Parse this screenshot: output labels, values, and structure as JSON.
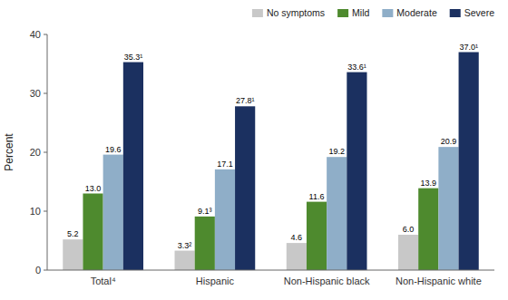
{
  "chart_data": {
    "type": "bar",
    "y_label": "Percent",
    "categories": [
      "Total⁴",
      "Hispanic",
      "Non-Hispanic black",
      "Non-Hispanic white"
    ],
    "series": [
      {
        "name": "No symptoms",
        "color": "#c8c8c8",
        "values": [
          5.2,
          3.3,
          4.6,
          6.0
        ],
        "value_labels": [
          "5.2",
          "3.3²",
          "4.6",
          "6.0"
        ]
      },
      {
        "name": "Mild",
        "color": "#4e8a2e",
        "values": [
          13.0,
          9.1,
          11.6,
          13.9
        ],
        "value_labels": [
          "13.0",
          "9.1³",
          "11.6",
          "13.9"
        ]
      },
      {
        "name": "Moderate",
        "color": "#8faec8",
        "values": [
          19.6,
          17.1,
          19.2,
          20.9
        ],
        "value_labels": [
          "19.6",
          "17.1",
          "19.2",
          "20.9"
        ]
      },
      {
        "name": "Severe",
        "color": "#1b3060",
        "values": [
          35.3,
          27.8,
          33.6,
          37.0
        ],
        "value_labels": [
          "35.3¹",
          "27.8¹",
          "33.6¹",
          "37.0¹"
        ]
      }
    ],
    "ylim": [
      0,
      40
    ],
    "yticks": [
      0,
      10,
      20,
      30,
      40
    ],
    "grid": false,
    "legend": "upper right",
    "data_labels": true
  }
}
